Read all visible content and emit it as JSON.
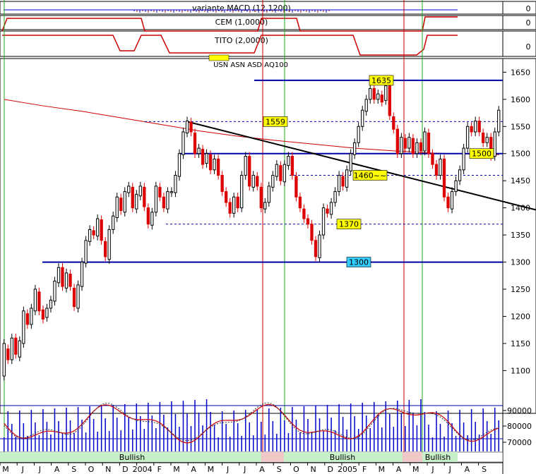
{
  "chart_data": {
    "type": "candlestick",
    "panels": {
      "macd": {
        "label": "variante MACD (12,1200)",
        "value_label": "0"
      },
      "cem": {
        "label": "CEM (1,0000)",
        "value_label": "0"
      },
      "tito": {
        "label": "TITO (2,0000)",
        "value_label": "0"
      }
    },
    "main": {
      "symbol_label": "USN ASN ASD AQ100",
      "ylim": [
        1055,
        1670
      ],
      "y_ticks": [
        1100,
        1150,
        1200,
        1250,
        1300,
        1350,
        1400,
        1450,
        1500,
        1550,
        1600,
        1650
      ],
      "moving_average": [
        [
          0,
          1600
        ],
        [
          10,
          1588
        ],
        [
          20,
          1578
        ],
        [
          30,
          1566
        ],
        [
          40,
          1554
        ],
        [
          50,
          1542
        ],
        [
          60,
          1532
        ],
        [
          70,
          1524
        ],
        [
          80,
          1517
        ],
        [
          90,
          1510
        ],
        [
          100,
          1505
        ],
        [
          110,
          1501
        ],
        [
          120,
          1499
        ],
        [
          130,
          1498
        ],
        [
          140,
          1497
        ],
        [
          150,
          1498
        ]
      ],
      "candles": [
        [
          1090,
          1150
        ],
        [
          1140,
          1120
        ],
        [
          1120,
          1160
        ],
        [
          1160,
          1130
        ],
        [
          1125,
          1155
        ],
        [
          1150,
          1210
        ],
        [
          1205,
          1185
        ],
        [
          1185,
          1215
        ],
        [
          1210,
          1250
        ],
        [
          1245,
          1210
        ],
        [
          1212,
          1195
        ],
        [
          1198,
          1215
        ],
        [
          1215,
          1230
        ],
        [
          1228,
          1265
        ],
        [
          1262,
          1290
        ],
        [
          1290,
          1255
        ],
        [
          1252,
          1280
        ],
        [
          1278,
          1255
        ],
        [
          1252,
          1218
        ],
        [
          1215,
          1258
        ],
        [
          1255,
          1300
        ],
        [
          1298,
          1340
        ],
        [
          1338,
          1360
        ],
        [
          1358,
          1350
        ],
        [
          1348,
          1380
        ],
        [
          1378,
          1340
        ],
        [
          1338,
          1310
        ],
        [
          1305,
          1360
        ],
        [
          1360,
          1385
        ],
        [
          1382,
          1420
        ],
        [
          1418,
          1395
        ],
        [
          1392,
          1430
        ],
        [
          1428,
          1440
        ],
        [
          1438,
          1400
        ],
        [
          1398,
          1425
        ],
        [
          1422,
          1440
        ],
        [
          1438,
          1402
        ],
        [
          1400,
          1370
        ],
        [
          1368,
          1392
        ],
        [
          1392,
          1440
        ],
        [
          1438,
          1420
        ],
        [
          1420,
          1400
        ],
        [
          1398,
          1430
        ],
        [
          1428,
          1430
        ],
        [
          1428,
          1460
        ],
        [
          1458,
          1500
        ],
        [
          1498,
          1540
        ],
        [
          1538,
          1560
        ],
        [
          1558,
          1540
        ],
        [
          1538,
          1500
        ],
        [
          1500,
          1510
        ],
        [
          1508,
          1480
        ],
        [
          1482,
          1500
        ],
        [
          1498,
          1470
        ],
        [
          1470,
          1490
        ],
        [
          1490,
          1460
        ],
        [
          1460,
          1430
        ],
        [
          1430,
          1410
        ],
        [
          1410,
          1390
        ],
        [
          1390,
          1420
        ],
        [
          1420,
          1400
        ],
        [
          1400,
          1460
        ],
        [
          1460,
          1495
        ],
        [
          1495,
          1440
        ],
        [
          1438,
          1460
        ],
        [
          1458,
          1440
        ],
        [
          1438,
          1400
        ],
        [
          1398,
          1410
        ],
        [
          1410,
          1440
        ],
        [
          1438,
          1460
        ],
        [
          1458,
          1480
        ],
        [
          1478,
          1450
        ],
        [
          1448,
          1480
        ],
        [
          1478,
          1495
        ],
        [
          1495,
          1460
        ],
        [
          1458,
          1420
        ],
        [
          1420,
          1400
        ],
        [
          1398,
          1380
        ],
        [
          1380,
          1370
        ],
        [
          1370,
          1340
        ],
        [
          1340,
          1310
        ],
        [
          1308,
          1350
        ],
        [
          1350,
          1400
        ],
        [
          1398,
          1390
        ],
        [
          1388,
          1410
        ],
        [
          1410,
          1430
        ],
        [
          1430,
          1460
        ],
        [
          1458,
          1440
        ],
        [
          1438,
          1470
        ],
        [
          1468,
          1500
        ],
        [
          1498,
          1520
        ],
        [
          1520,
          1550
        ],
        [
          1550,
          1580
        ],
        [
          1578,
          1600
        ],
        [
          1600,
          1620
        ],
        [
          1620,
          1600
        ],
        [
          1600,
          1610
        ],
        [
          1608,
          1595
        ],
        [
          1598,
          1625
        ],
        [
          1625,
          1570
        ],
        [
          1568,
          1545
        ],
        [
          1545,
          1500
        ],
        [
          1500,
          1530
        ],
        [
          1528,
          1510
        ],
        [
          1510,
          1530
        ],
        [
          1528,
          1500
        ],
        [
          1500,
          1520
        ],
        [
          1520,
          1505
        ],
        [
          1505,
          1540
        ],
        [
          1538,
          1500
        ],
        [
          1500,
          1480
        ],
        [
          1480,
          1460
        ],
        [
          1460,
          1490
        ],
        [
          1490,
          1420
        ],
        [
          1420,
          1400
        ],
        [
          1398,
          1430
        ],
        [
          1430,
          1450
        ],
        [
          1450,
          1470
        ],
        [
          1470,
          1510
        ],
        [
          1510,
          1550
        ],
        [
          1550,
          1540
        ],
        [
          1540,
          1560
        ],
        [
          1560,
          1540
        ],
        [
          1538,
          1520
        ],
        [
          1520,
          1530
        ],
        [
          1530,
          1495
        ],
        [
          1495,
          1540
        ],
        [
          1540,
          1580
        ]
      ],
      "horizontal_levels": [
        {
          "value": 1635,
          "label": "1635",
          "style": "solid"
        },
        {
          "value": 1559,
          "label": "1559",
          "style": "dashed"
        },
        {
          "value": 1500,
          "label": "1500",
          "style": "solid"
        },
        {
          "value": 1460,
          "label": "1460~~",
          "style": "dashed"
        },
        {
          "value": 1370,
          "label": "1370",
          "style": "dashed"
        },
        {
          "value": 1300,
          "label": "1300",
          "style": "solid"
        }
      ],
      "trendline": {
        "from": [
          47,
          1559
        ],
        "to": [
          140,
          1390
        ]
      }
    },
    "oscillator": {
      "y_ticks": [
        90000,
        80000,
        70000
      ],
      "bullish_labels": [
        "Bullish",
        "Bullish",
        "Bullish"
      ]
    },
    "x_ticks": [
      "M",
      "J",
      "J",
      "A",
      "S",
      "O",
      "N",
      "D",
      "2004",
      "F",
      "M",
      "A",
      "M",
      "J",
      "J",
      "A",
      "S",
      "O",
      "N",
      "D",
      "2005",
      "F",
      "M",
      "A",
      "M",
      "J",
      "J",
      "A",
      "S"
    ],
    "colors": {
      "up": "#000000",
      "down": "#dd0000",
      "level": "#0000aa",
      "ma": "#cc0000",
      "ma2": "#880088",
      "yellow_label": "#ffff00",
      "blue_label": "#33ccff"
    }
  }
}
